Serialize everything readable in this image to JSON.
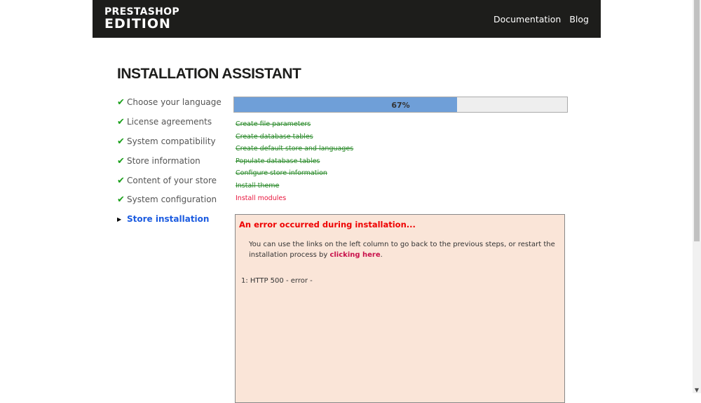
{
  "header": {
    "logo_line1": "PRESTASHOP",
    "logo_line2": "EDITION",
    "nav": [
      "Documentation",
      "Blog"
    ]
  },
  "title": "INSTALLATION ASSISTANT",
  "steps": [
    {
      "label": "Choose your language",
      "status": "done"
    },
    {
      "label": "License agreements",
      "status": "done"
    },
    {
      "label": "System compatibility",
      "status": "done"
    },
    {
      "label": "Store information",
      "status": "done"
    },
    {
      "label": "Content of your store",
      "status": "done"
    },
    {
      "label": "System configuration",
      "status": "done"
    },
    {
      "label": "Store installation",
      "status": "current"
    }
  ],
  "progress": {
    "percent": 67,
    "label": "67%"
  },
  "tasks": [
    {
      "label": "Create file parameters",
      "status": "done"
    },
    {
      "label": "Create database tables",
      "status": "done"
    },
    {
      "label": "Create default store and languages",
      "status": "done"
    },
    {
      "label": "Populate database tables",
      "status": "done"
    },
    {
      "label": "Configure store information",
      "status": "done"
    },
    {
      "label": "Install theme",
      "status": "done"
    },
    {
      "label": "Install modules",
      "status": "error"
    }
  ],
  "error": {
    "title": "An error occurred during installation...",
    "message": "You can use the links on the left column to go back to the previous steps, or restart the installation process by",
    "link": "clicking here",
    "after": ".",
    "line": "1: HTTP 500 - error -"
  },
  "colors": {
    "header": "#1d1d1b",
    "progress": "#6f9fd8",
    "done": "#2a8a2a",
    "error": "#e8143c",
    "current": "#1b5be0"
  }
}
